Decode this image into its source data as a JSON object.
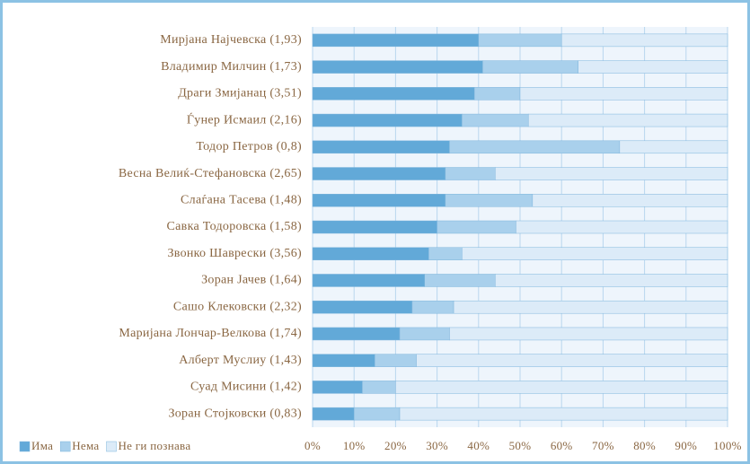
{
  "chart_data": {
    "type": "stacked_bar_horizontal",
    "categories": [
      "Мирјана Најчевска (1,93)",
      "Владимир Милчин (1,73)",
      "Драги Змијанац (3,51)",
      "Ѓунер Исмаил (2,16)",
      "Тодор Петров (0,8)",
      "Весна Велиќ-Стефановска (2,65)",
      "Слаѓана Тасева (1,48)",
      "Савка Тодоровска (1,58)",
      "Звонко Шаврески (3,56)",
      "Зоран Јачев (1,64)",
      "Сашо Клековски (2,32)",
      "Маријана Лончар-Велкова (1,74)",
      "Алберт Муслиу (1,43)",
      "Суад Мисини (1,42)",
      "Зоран Стојковски (0,83)"
    ],
    "series": [
      {
        "name": "Има",
        "color": "#62a9d8",
        "values": [
          40,
          41,
          39,
          36,
          33,
          32,
          32,
          30,
          28,
          27,
          24,
          21,
          15,
          12,
          10
        ]
      },
      {
        "name": "Нема",
        "color": "#a9d0ec",
        "values": [
          20,
          23,
          11,
          16,
          41,
          12,
          21,
          19,
          8,
          17,
          10,
          12,
          10,
          8,
          11
        ]
      },
      {
        "name": "Не ги познава",
        "color": "#dcebf8",
        "values": [
          40,
          36,
          50,
          48,
          26,
          56,
          47,
          51,
          64,
          56,
          66,
          67,
          75,
          80,
          79
        ]
      }
    ],
    "xlim": [
      0,
      100
    ],
    "xticks": [
      {
        "value": 0,
        "label": "0%"
      },
      {
        "value": 10,
        "label": "10%"
      },
      {
        "value": 20,
        "label": "20%"
      },
      {
        "value": 30,
        "label": "30%"
      },
      {
        "value": 40,
        "label": "40%"
      },
      {
        "value": 50,
        "label": "50%"
      },
      {
        "value": 60,
        "label": "60%"
      },
      {
        "value": 70,
        "label": "70%"
      },
      {
        "value": 80,
        "label": "80%"
      },
      {
        "value": 90,
        "label": "90%"
      },
      {
        "value": 100,
        "label": "100%"
      }
    ],
    "grid": true
  }
}
